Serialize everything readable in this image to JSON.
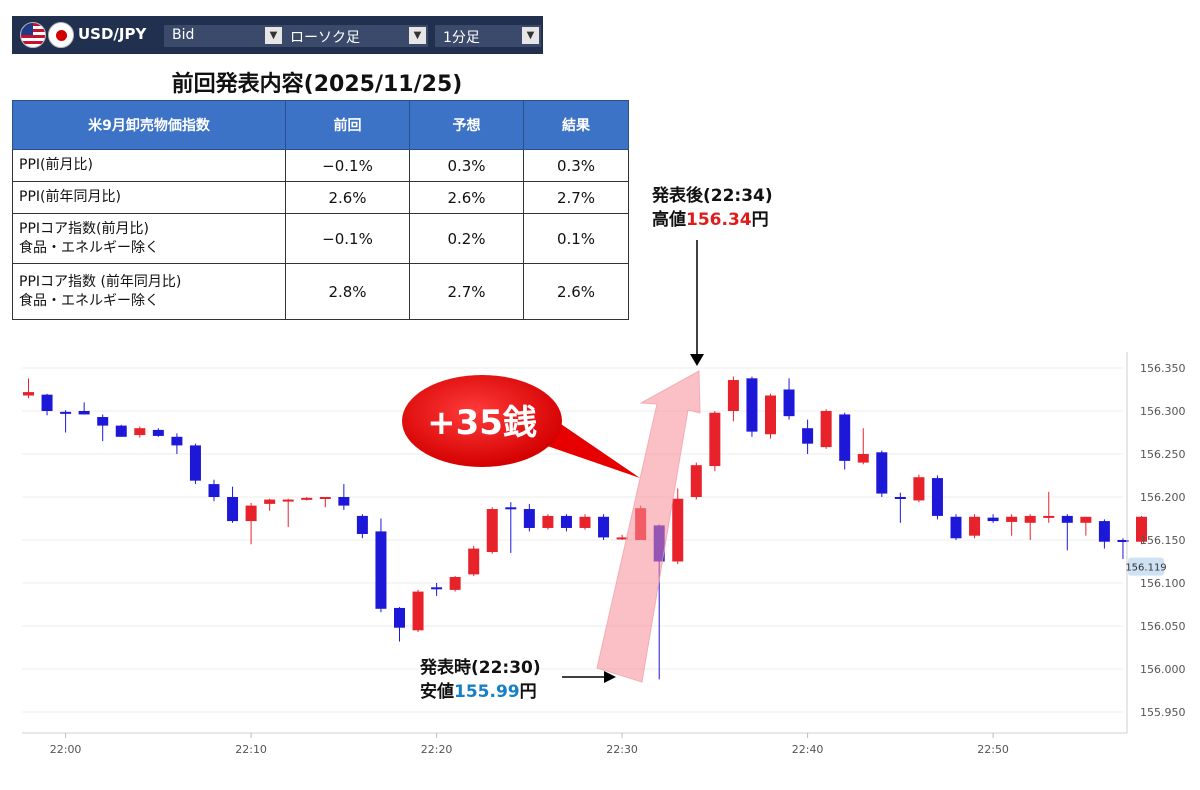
{
  "toolbar": {
    "pair": "USD/JPY",
    "price_type": "Bid",
    "chart_type": "ローソク足",
    "timeframe": "1分足",
    "colors": {
      "bg": "#22304f",
      "select": "#3b4a6b"
    }
  },
  "title": "前回発表内容(2025/11/25)",
  "table": {
    "headers": [
      "米9月卸売物価指数",
      "前回",
      "予想",
      "結果"
    ],
    "rows": [
      {
        "label": [
          "PPI(前月比)"
        ],
        "values": [
          "−0.1%",
          "0.3%",
          "0.3%"
        ]
      },
      {
        "label": [
          "PPI(前年同月比)"
        ],
        "values": [
          "2.6%",
          "2.6%",
          "2.7%"
        ]
      },
      {
        "label": [
          "PPIコア指数(前月比)",
          "食品・エネルギー除く"
        ],
        "values": [
          "−0.1%",
          "0.2%",
          "0.1%"
        ]
      },
      {
        "label": [
          "PPIコア指数 (前年同月比)",
          "食品・エネルギー除く"
        ],
        "values": [
          "2.8%",
          "2.7%",
          "2.6%"
        ]
      }
    ],
    "header_color": "#3d73c6"
  },
  "annotations": {
    "bubble": "+35銭",
    "after_title": "発表後(22:34)",
    "after_prefix": "高値",
    "after_value": "156.34",
    "after_suffix": "円",
    "at_title": "発表時(22:30)",
    "at_prefix": "安値",
    "at_value": "155.99",
    "at_suffix": "円"
  },
  "chart_data": {
    "type": "candlestick",
    "ylim": [
      155.93,
      156.36
    ],
    "yticks": [
      "156.350",
      "156.300",
      "156.250",
      "156.200",
      "156.150",
      "156.100",
      "156.050",
      "156.000",
      "155.950"
    ],
    "xticks": [
      "22:00",
      "22:10",
      "22:20",
      "22:30",
      "22:40",
      "22:50"
    ],
    "current_price": "156.119",
    "up_color": "#e8222a",
    "down_color": "#1d18d8",
    "candles": [
      {
        "o": 156.318,
        "h": 156.338,
        "l": 156.315,
        "c": 156.322
      },
      {
        "o": 156.319,
        "h": 156.32,
        "l": 156.295,
        "c": 156.3
      },
      {
        "o": 156.299,
        "h": 156.301,
        "l": 156.275,
        "c": 156.298
      },
      {
        "o": 156.3,
        "h": 156.31,
        "l": 156.296,
        "c": 156.296
      },
      {
        "o": 156.293,
        "h": 156.296,
        "l": 156.265,
        "c": 156.283
      },
      {
        "o": 156.283,
        "h": 156.284,
        "l": 156.27,
        "c": 156.27
      },
      {
        "o": 156.272,
        "h": 156.282,
        "l": 156.269,
        "c": 156.28
      },
      {
        "o": 156.278,
        "h": 156.28,
        "l": 156.27,
        "c": 156.271
      },
      {
        "o": 156.27,
        "h": 156.274,
        "l": 156.25,
        "c": 156.26
      },
      {
        "o": 156.26,
        "h": 156.262,
        "l": 156.215,
        "c": 156.219
      },
      {
        "o": 156.215,
        "h": 156.22,
        "l": 156.195,
        "c": 156.2
      },
      {
        "o": 156.2,
        "h": 156.212,
        "l": 156.17,
        "c": 156.172
      },
      {
        "o": 156.172,
        "h": 156.193,
        "l": 156.145,
        "c": 156.19
      },
      {
        "o": 156.192,
        "h": 156.198,
        "l": 156.184,
        "c": 156.197
      },
      {
        "o": 156.196,
        "h": 156.198,
        "l": 156.165,
        "c": 156.197
      },
      {
        "o": 156.198,
        "h": 156.2,
        "l": 156.196,
        "c": 156.199
      },
      {
        "o": 156.199,
        "h": 156.2,
        "l": 156.188,
        "c": 156.2
      },
      {
        "o": 156.2,
        "h": 156.215,
        "l": 156.185,
        "c": 156.19
      },
      {
        "o": 156.178,
        "h": 156.18,
        "l": 156.152,
        "c": 156.157
      },
      {
        "o": 156.16,
        "h": 156.175,
        "l": 156.066,
        "c": 156.07
      },
      {
        "o": 156.071,
        "h": 156.072,
        "l": 156.032,
        "c": 156.048
      },
      {
        "o": 156.045,
        "h": 156.092,
        "l": 156.043,
        "c": 156.09
      },
      {
        "o": 156.095,
        "h": 156.1,
        "l": 156.085,
        "c": 156.094
      },
      {
        "o": 156.092,
        "h": 156.108,
        "l": 156.09,
        "c": 156.107
      },
      {
        "o": 156.11,
        "h": 156.143,
        "l": 156.108,
        "c": 156.14
      },
      {
        "o": 156.136,
        "h": 156.188,
        "l": 156.134,
        "c": 156.186
      },
      {
        "o": 156.188,
        "h": 156.194,
        "l": 156.135,
        "c": 156.186
      },
      {
        "o": 156.186,
        "h": 156.192,
        "l": 156.16,
        "c": 156.164
      },
      {
        "o": 156.164,
        "h": 156.18,
        "l": 156.162,
        "c": 156.178
      },
      {
        "o": 156.178,
        "h": 156.18,
        "l": 156.16,
        "c": 156.164
      },
      {
        "o": 156.164,
        "h": 156.18,
        "l": 156.162,
        "c": 156.177
      },
      {
        "o": 156.177,
        "h": 156.18,
        "l": 156.15,
        "c": 156.153
      },
      {
        "o": 156.153,
        "h": 156.156,
        "l": 156.15,
        "c": 156.153
      },
      {
        "o": 156.15,
        "h": 156.19,
        "l": 156.15,
        "c": 156.187
      },
      {
        "o": 156.167,
        "h": 156.168,
        "l": 155.988,
        "c": 156.125
      },
      {
        "o": 156.125,
        "h": 156.21,
        "l": 156.122,
        "c": 156.198
      },
      {
        "o": 156.2,
        "h": 156.24,
        "l": 156.197,
        "c": 156.237
      },
      {
        "o": 156.236,
        "h": 156.3,
        "l": 156.23,
        "c": 156.298
      },
      {
        "o": 156.3,
        "h": 156.34,
        "l": 156.288,
        "c": 156.336
      },
      {
        "o": 156.338,
        "h": 156.34,
        "l": 156.27,
        "c": 156.276
      },
      {
        "o": 156.273,
        "h": 156.32,
        "l": 156.268,
        "c": 156.318
      },
      {
        "o": 156.325,
        "h": 156.338,
        "l": 156.29,
        "c": 156.294
      },
      {
        "o": 156.28,
        "h": 156.29,
        "l": 156.25,
        "c": 156.262
      },
      {
        "o": 156.258,
        "h": 156.302,
        "l": 156.256,
        "c": 156.3
      },
      {
        "o": 156.296,
        "h": 156.298,
        "l": 156.232,
        "c": 156.242
      },
      {
        "o": 156.24,
        "h": 156.28,
        "l": 156.238,
        "c": 156.25
      },
      {
        "o": 156.252,
        "h": 156.254,
        "l": 156.2,
        "c": 156.204
      },
      {
        "o": 156.2,
        "h": 156.205,
        "l": 156.17,
        "c": 156.199
      },
      {
        "o": 156.196,
        "h": 156.226,
        "l": 156.194,
        "c": 156.223
      },
      {
        "o": 156.222,
        "h": 156.225,
        "l": 156.174,
        "c": 156.178
      },
      {
        "o": 156.177,
        "h": 156.18,
        "l": 156.15,
        "c": 156.152
      },
      {
        "o": 156.155,
        "h": 156.18,
        "l": 156.152,
        "c": 156.177
      },
      {
        "o": 156.176,
        "h": 156.18,
        "l": 156.17,
        "c": 156.172
      },
      {
        "o": 156.171,
        "h": 156.18,
        "l": 156.155,
        "c": 156.177
      },
      {
        "o": 156.17,
        "h": 156.18,
        "l": 156.15,
        "c": 156.178
      },
      {
        "o": 156.176,
        "h": 156.206,
        "l": 156.17,
        "c": 156.178
      },
      {
        "o": 156.178,
        "h": 156.18,
        "l": 156.138,
        "c": 156.17
      },
      {
        "o": 156.17,
        "h": 156.176,
        "l": 156.155,
        "c": 156.177
      },
      {
        "o": 156.172,
        "h": 156.174,
        "l": 156.14,
        "c": 156.148
      },
      {
        "o": 156.15,
        "h": 156.152,
        "l": 156.128,
        "c": 156.148
      },
      {
        "o": 156.148,
        "h": 156.178,
        "l": 156.145,
        "c": 156.177
      }
    ]
  }
}
